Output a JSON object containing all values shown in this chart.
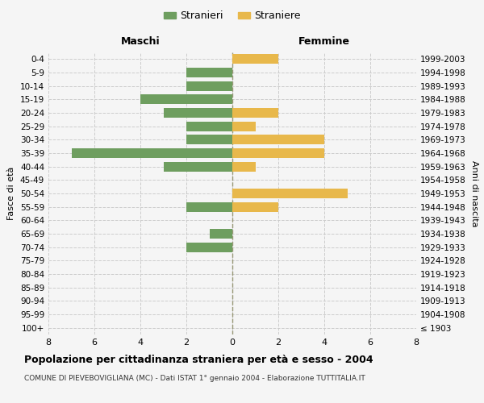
{
  "age_groups": [
    "0-4",
    "5-9",
    "10-14",
    "15-19",
    "20-24",
    "25-29",
    "30-34",
    "35-39",
    "40-44",
    "45-49",
    "50-54",
    "55-59",
    "60-64",
    "65-69",
    "70-74",
    "75-79",
    "80-84",
    "85-89",
    "90-94",
    "95-99",
    "100+"
  ],
  "birth_years": [
    "1999-2003",
    "1994-1998",
    "1989-1993",
    "1984-1988",
    "1979-1983",
    "1974-1978",
    "1969-1973",
    "1964-1968",
    "1959-1963",
    "1954-1958",
    "1949-1953",
    "1944-1948",
    "1939-1943",
    "1934-1938",
    "1929-1933",
    "1924-1928",
    "1919-1923",
    "1914-1918",
    "1909-1913",
    "1904-1908",
    "≤ 1903"
  ],
  "males": [
    0,
    2,
    2,
    4,
    3,
    2,
    2,
    7,
    3,
    0,
    0,
    2,
    0,
    1,
    2,
    0,
    0,
    0,
    0,
    0,
    0
  ],
  "females": [
    2,
    0,
    0,
    0,
    2,
    1,
    4,
    4,
    1,
    0,
    5,
    2,
    0,
    0,
    0,
    0,
    0,
    0,
    0,
    0,
    0
  ],
  "male_color": "#6e9e5f",
  "female_color": "#e8b84b",
  "xlim": 8,
  "title": "Popolazione per cittadinanza straniera per età e sesso - 2004",
  "subtitle": "COMUNE DI PIEVEBOVIGLIANA (MC) - Dati ISTAT 1° gennaio 2004 - Elaborazione TUTTITALIA.IT",
  "ylabel_left": "Fasce di età",
  "ylabel_right": "Anni di nascita",
  "header_left": "Maschi",
  "header_right": "Femmine",
  "legend_males": "Stranieri",
  "legend_females": "Straniere",
  "bg_color": "#f5f5f5",
  "grid_color": "#cccccc",
  "bar_height": 0.72
}
